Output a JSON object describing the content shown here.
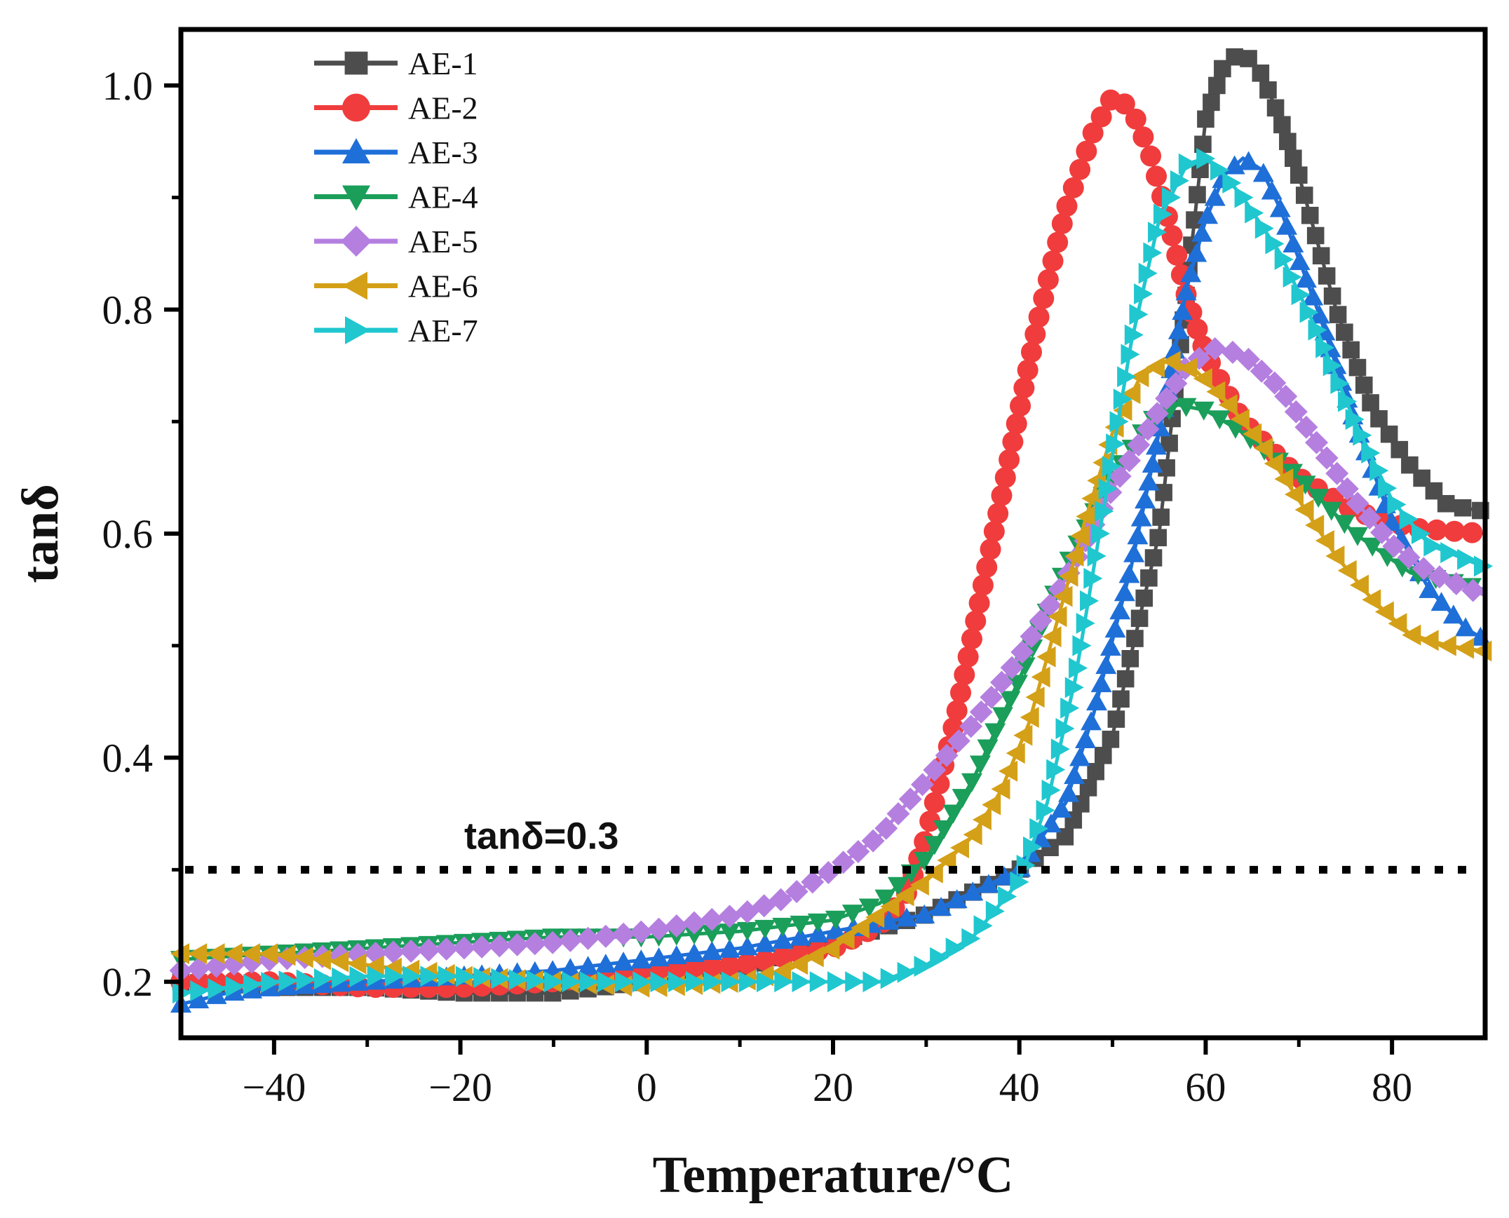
{
  "chart_data": {
    "type": "line",
    "xlabel": "Temperature/°C",
    "ylabel": "tanδ",
    "xlim": [
      -50,
      90
    ],
    "ylim": [
      0.15,
      1.05
    ],
    "x_ticks": [
      -40,
      -20,
      0,
      20,
      40,
      60,
      80
    ],
    "y_ticks": [
      0.2,
      0.4,
      0.6,
      0.8,
      1.0
    ],
    "x_tick_labels": [
      "−40",
      "−20",
      "0",
      "20",
      "40",
      "60",
      "80"
    ],
    "y_tick_labels": [
      "0.2",
      "0.4",
      "0.6",
      "0.8",
      "1.0"
    ],
    "grid": false,
    "legend_position": "top-left",
    "reference_line": {
      "y": 0.3,
      "label": "tanδ=0.3",
      "style": "dotted",
      "color": "#000000"
    },
    "series": [
      {
        "name": "AE-1",
        "color": "#4d4d4d",
        "marker": "square",
        "points": [
          [
            -50,
            0.2
          ],
          [
            -40,
            0.195
          ],
          [
            -30,
            0.195
          ],
          [
            -20,
            0.19
          ],
          [
            -10,
            0.19
          ],
          [
            0,
            0.2
          ],
          [
            10,
            0.21
          ],
          [
            20,
            0.235
          ],
          [
            30,
            0.26
          ],
          [
            35,
            0.28
          ],
          [
            40,
            0.3
          ],
          [
            45,
            0.33
          ],
          [
            50,
            0.42
          ],
          [
            55,
            0.6
          ],
          [
            58,
            0.82
          ],
          [
            60,
            0.97
          ],
          [
            62,
            1.02
          ],
          [
            64,
            1.03
          ],
          [
            66,
            1.01
          ],
          [
            68,
            0.97
          ],
          [
            70,
            0.92
          ],
          [
            74,
            0.8
          ],
          [
            78,
            0.71
          ],
          [
            82,
            0.66
          ],
          [
            86,
            0.625
          ],
          [
            90,
            0.62
          ]
        ]
      },
      {
        "name": "AE-2",
        "color": "#f03c3c",
        "marker": "circle",
        "points": [
          [
            -50,
            0.2
          ],
          [
            -40,
            0.2
          ],
          [
            -30,
            0.195
          ],
          [
            -20,
            0.195
          ],
          [
            -10,
            0.2
          ],
          [
            0,
            0.21
          ],
          [
            10,
            0.215
          ],
          [
            20,
            0.23
          ],
          [
            25,
            0.25
          ],
          [
            28,
            0.28
          ],
          [
            30,
            0.33
          ],
          [
            33,
            0.43
          ],
          [
            36,
            0.55
          ],
          [
            39,
            0.67
          ],
          [
            42,
            0.79
          ],
          [
            45,
            0.89
          ],
          [
            48,
            0.96
          ],
          [
            50,
            0.99
          ],
          [
            52,
            0.98
          ],
          [
            54,
            0.94
          ],
          [
            56,
            0.88
          ],
          [
            58,
            0.81
          ],
          [
            60,
            0.76
          ],
          [
            64,
            0.7
          ],
          [
            70,
            0.65
          ],
          [
            76,
            0.62
          ],
          [
            82,
            0.605
          ],
          [
            90,
            0.6
          ]
        ]
      },
      {
        "name": "AE-3",
        "color": "#1f6fd8",
        "marker": "triangle-up",
        "points": [
          [
            -50,
            0.18
          ],
          [
            -45,
            0.19
          ],
          [
            -40,
            0.195
          ],
          [
            -30,
            0.2
          ],
          [
            -20,
            0.205
          ],
          [
            -10,
            0.21
          ],
          [
            0,
            0.22
          ],
          [
            10,
            0.23
          ],
          [
            20,
            0.245
          ],
          [
            30,
            0.26
          ],
          [
            35,
            0.28
          ],
          [
            40,
            0.3
          ],
          [
            45,
            0.36
          ],
          [
            48,
            0.44
          ],
          [
            52,
            0.57
          ],
          [
            55,
            0.69
          ],
          [
            58,
            0.82
          ],
          [
            60,
            0.88
          ],
          [
            62,
            0.92
          ],
          [
            64,
            0.935
          ],
          [
            66,
            0.925
          ],
          [
            68,
            0.89
          ],
          [
            72,
            0.8
          ],
          [
            76,
            0.7
          ],
          [
            80,
            0.61
          ],
          [
            84,
            0.55
          ],
          [
            88,
            0.515
          ],
          [
            90,
            0.505
          ]
        ]
      },
      {
        "name": "AE-4",
        "color": "#1a9e5a",
        "marker": "triangle-down",
        "points": [
          [
            -50,
            0.22
          ],
          [
            -40,
            0.225
          ],
          [
            -30,
            0.23
          ],
          [
            -20,
            0.235
          ],
          [
            -10,
            0.24
          ],
          [
            0,
            0.24
          ],
          [
            10,
            0.245
          ],
          [
            20,
            0.255
          ],
          [
            25,
            0.27
          ],
          [
            30,
            0.31
          ],
          [
            35,
            0.38
          ],
          [
            40,
            0.47
          ],
          [
            45,
            0.57
          ],
          [
            50,
            0.65
          ],
          [
            54,
            0.7
          ],
          [
            57,
            0.715
          ],
          [
            60,
            0.71
          ],
          [
            64,
            0.69
          ],
          [
            70,
            0.65
          ],
          [
            76,
            0.6
          ],
          [
            82,
            0.565
          ],
          [
            90,
            0.55
          ]
        ]
      },
      {
        "name": "AE-5",
        "color": "#b57fe0",
        "marker": "diamond",
        "points": [
          [
            -50,
            0.21
          ],
          [
            -40,
            0.22
          ],
          [
            -30,
            0.225
          ],
          [
            -20,
            0.23
          ],
          [
            -10,
            0.235
          ],
          [
            0,
            0.245
          ],
          [
            10,
            0.26
          ],
          [
            15,
            0.275
          ],
          [
            20,
            0.3
          ],
          [
            25,
            0.33
          ],
          [
            30,
            0.38
          ],
          [
            35,
            0.43
          ],
          [
            40,
            0.49
          ],
          [
            45,
            0.56
          ],
          [
            50,
            0.64
          ],
          [
            55,
            0.71
          ],
          [
            58,
            0.75
          ],
          [
            61,
            0.765
          ],
          [
            64,
            0.76
          ],
          [
            68,
            0.73
          ],
          [
            72,
            0.68
          ],
          [
            76,
            0.63
          ],
          [
            80,
            0.59
          ],
          [
            84,
            0.565
          ],
          [
            90,
            0.545
          ]
        ]
      },
      {
        "name": "AE-6",
        "color": "#d4a017",
        "marker": "triangle-left",
        "points": [
          [
            -50,
            0.225
          ],
          [
            -40,
            0.225
          ],
          [
            -30,
            0.215
          ],
          [
            -20,
            0.205
          ],
          [
            -10,
            0.2
          ],
          [
            0,
            0.195
          ],
          [
            10,
            0.2
          ],
          [
            15,
            0.21
          ],
          [
            20,
            0.23
          ],
          [
            25,
            0.26
          ],
          [
            30,
            0.29
          ],
          [
            35,
            0.33
          ],
          [
            38,
            0.37
          ],
          [
            41,
            0.43
          ],
          [
            44,
            0.52
          ],
          [
            47,
            0.61
          ],
          [
            50,
            0.69
          ],
          [
            53,
            0.74
          ],
          [
            56,
            0.755
          ],
          [
            59,
            0.745
          ],
          [
            62,
            0.72
          ],
          [
            66,
            0.68
          ],
          [
            70,
            0.63
          ],
          [
            74,
            0.58
          ],
          [
            78,
            0.54
          ],
          [
            82,
            0.51
          ],
          [
            86,
            0.5
          ],
          [
            90,
            0.495
          ]
        ]
      },
      {
        "name": "AE-7",
        "color": "#20c7cf",
        "marker": "triangle-right",
        "points": [
          [
            -50,
            0.19
          ],
          [
            -40,
            0.2
          ],
          [
            -30,
            0.205
          ],
          [
            -20,
            0.205
          ],
          [
            -10,
            0.2
          ],
          [
            0,
            0.2
          ],
          [
            10,
            0.2
          ],
          [
            20,
            0.2
          ],
          [
            25,
            0.2
          ],
          [
            30,
            0.215
          ],
          [
            35,
            0.24
          ],
          [
            40,
            0.29
          ],
          [
            43,
            0.36
          ],
          [
            46,
            0.47
          ],
          [
            49,
            0.62
          ],
          [
            52,
            0.77
          ],
          [
            55,
            0.88
          ],
          [
            58,
            0.93
          ],
          [
            60,
            0.935
          ],
          [
            62,
            0.92
          ],
          [
            64,
            0.9
          ],
          [
            68,
            0.85
          ],
          [
            72,
            0.78
          ],
          [
            76,
            0.7
          ],
          [
            80,
            0.63
          ],
          [
            84,
            0.59
          ],
          [
            90,
            0.57
          ]
        ]
      }
    ]
  }
}
